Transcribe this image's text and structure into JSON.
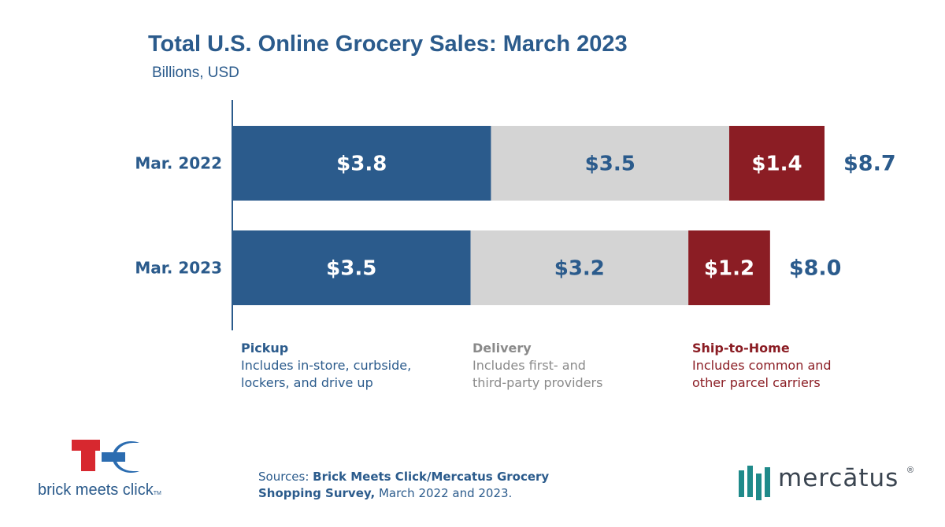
{
  "chart_data": {
    "type": "bar",
    "orientation": "horizontal",
    "stacked": true,
    "title": "Total U.S. Online Grocery Sales: March 2023",
    "subtitle": "Billions, USD",
    "categories": [
      "Mar. 2022",
      "Mar. 2023"
    ],
    "series": [
      {
        "name": "Pickup",
        "values": [
          3.8,
          3.5
        ],
        "labels": [
          "$3.8",
          "$3.5"
        ],
        "color": "#2b5b8c",
        "label_color": "#ffffff"
      },
      {
        "name": "Delivery",
        "values": [
          3.5,
          3.2
        ],
        "labels": [
          "$3.5",
          "$3.2"
        ],
        "color": "#d4d4d4",
        "label_color": "#2b5b8c"
      },
      {
        "name": "Ship-to-Home",
        "values": [
          1.4,
          1.2
        ],
        "labels": [
          "$1.4",
          "$1.2"
        ],
        "color": "#8b1d24",
        "label_color": "#ffffff"
      }
    ],
    "totals": [
      8.7,
      8.0
    ],
    "total_labels": [
      "$8.7",
      "$8.0"
    ],
    "xlim": [
      0,
      8.7
    ],
    "grid": false
  },
  "legend": [
    {
      "title": "Pickup",
      "lines": [
        "Includes in-store, curbside,",
        "lockers, and drive up"
      ]
    },
    {
      "title": "Delivery",
      "lines": [
        "Includes first- and",
        "third-party providers"
      ]
    },
    {
      "title": "Ship-to-Home",
      "lines": [
        "Includes common and",
        "other parcel carriers"
      ]
    }
  ],
  "sources": {
    "prefix": "Sources: ",
    "bold_1": "Brick Meets Click/Mercatus Grocery",
    "bold_2": "Shopping Survey,",
    "rest": " March 2022 and 2023."
  },
  "logos": {
    "bmc_text": "brick meets click",
    "bmc_tm": "TM",
    "bmc_colors": {
      "red": "#d7282f",
      "blue": "#2b6cb0"
    },
    "mercatus_text": "mercātus",
    "mercatus_reg": "®",
    "mercatus_color": "#1f8a8a"
  }
}
